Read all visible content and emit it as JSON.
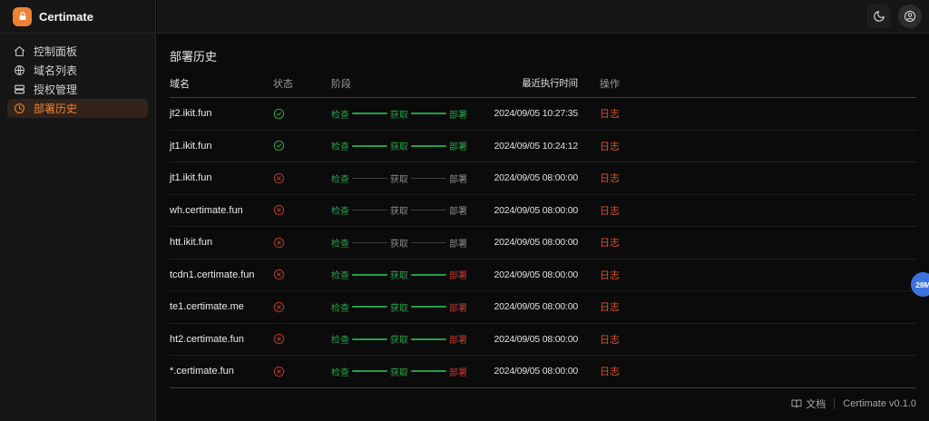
{
  "brand": {
    "name": "Certimate",
    "logo_icon": "lock-icon"
  },
  "sidebar": {
    "items": [
      {
        "key": "dashboard",
        "label": "控制面板",
        "icon": "home-icon",
        "active": false
      },
      {
        "key": "domains",
        "label": "域名列表",
        "icon": "globe-icon",
        "active": false
      },
      {
        "key": "auth",
        "label": "授权管理",
        "icon": "server-icon",
        "active": false
      },
      {
        "key": "history",
        "label": "部署历史",
        "icon": "history-icon",
        "active": true
      }
    ]
  },
  "topbar": {
    "theme_toggle_icon": "moon-icon",
    "account_icon": "user-circle-icon"
  },
  "page": {
    "title": "部署历史"
  },
  "table": {
    "columns": {
      "domain": "域名",
      "status": "状态",
      "stage": "阶段",
      "time": "最近执行时间",
      "action": "操作"
    },
    "stage_labels": [
      "检查",
      "获取",
      "部署"
    ],
    "action_label": "日志",
    "rows": [
      {
        "domain": "jt2.ikit.fun",
        "status": "success",
        "stage_states": [
          "done",
          "done",
          "done"
        ],
        "time": "2024/09/05 10:27:35"
      },
      {
        "domain": "jt1.ikit.fun",
        "status": "success",
        "stage_states": [
          "done",
          "done",
          "done"
        ],
        "time": "2024/09/05 10:24:12"
      },
      {
        "domain": "jt1.ikit.fun",
        "status": "failed",
        "stage_states": [
          "done",
          "pending",
          "pending"
        ],
        "time": "2024/09/05 08:00:00"
      },
      {
        "domain": "wh.certimate.fun",
        "status": "failed",
        "stage_states": [
          "done",
          "pending",
          "pending"
        ],
        "time": "2024/09/05 08:00:00"
      },
      {
        "domain": "htt.ikit.fun",
        "status": "failed",
        "stage_states": [
          "done",
          "pending",
          "pending"
        ],
        "time": "2024/09/05 08:00:00"
      },
      {
        "domain": "tcdn1.certimate.fun",
        "status": "failed",
        "stage_states": [
          "done",
          "done",
          "error"
        ],
        "time": "2024/09/05 08:00:00"
      },
      {
        "domain": "te1.certimate.me",
        "status": "failed",
        "stage_states": [
          "done",
          "done",
          "error"
        ],
        "time": "2024/09/05 08:00:00"
      },
      {
        "domain": "ht2.certimate.fun",
        "status": "failed",
        "stage_states": [
          "done",
          "done",
          "error"
        ],
        "time": "2024/09/05 08:00:00"
      },
      {
        "domain": "*.certimate.fun",
        "status": "failed",
        "stage_states": [
          "done",
          "done",
          "error"
        ],
        "time": "2024/09/05 08:00:00"
      }
    ]
  },
  "footer": {
    "docs_label": "文档",
    "docs_icon": "book-icon",
    "version": "Certimate v0.1.0"
  },
  "overlay": {
    "badge_text": "28M"
  },
  "colors": {
    "accent_orange": "#ee8233",
    "success_green": "#2aa24a",
    "error_red": "#c03a30",
    "action_orange": "#d4542c",
    "badge_blue": "#3b74e0",
    "sidebar_bg": "#161616",
    "main_bg": "#0b0b0c"
  }
}
